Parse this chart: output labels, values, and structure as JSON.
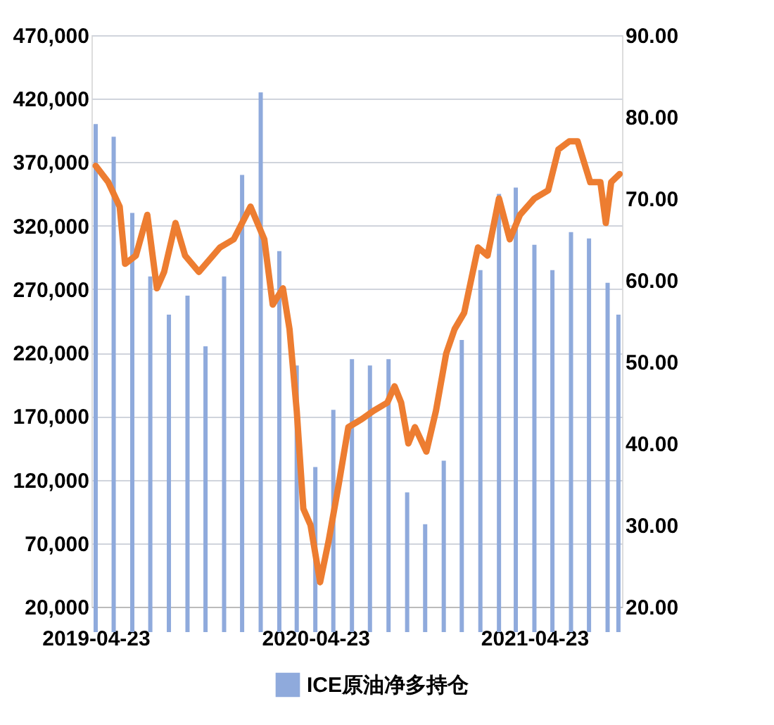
{
  "chart_data": {
    "type": "bar",
    "x": [
      "2019-04-23",
      "2019-05-23",
      "2019-06-23",
      "2019-07-23",
      "2019-08-23",
      "2019-09-23",
      "2019-10-23",
      "2019-11-23",
      "2019-12-23",
      "2020-01-23",
      "2020-02-23",
      "2020-03-23",
      "2020-04-23",
      "2020-05-23",
      "2020-06-23",
      "2020-07-23",
      "2020-08-23",
      "2020-09-23",
      "2020-10-23",
      "2020-11-23",
      "2020-12-23",
      "2021-01-23",
      "2021-02-23",
      "2021-03-23",
      "2021-04-23",
      "2021-05-23",
      "2021-06-23",
      "2021-07-23",
      "2021-08-23",
      "2021-09-10"
    ],
    "series": [
      {
        "name": "ICE原油净多持仓",
        "type": "bar",
        "color": "#8faadc",
        "values": [
          400000,
          390000,
          330000,
          280000,
          250000,
          265000,
          225000,
          280000,
          360000,
          425000,
          300000,
          210000,
          130000,
          175000,
          215000,
          210000,
          215000,
          110000,
          85000,
          135000,
          230000,
          285000,
          345000,
          350000,
          305000,
          285000,
          315000,
          310000,
          275000,
          250000
        ]
      },
      {
        "type": "line",
        "axis": "y2",
        "color": "#ed7d31",
        "x": [
          "2019-04-23",
          "2019-05-14",
          "2019-06-02",
          "2019-06-11",
          "2019-06-29",
          "2019-07-18",
          "2019-08-03",
          "2019-08-15",
          "2019-09-03",
          "2019-09-19",
          "2019-10-12",
          "2019-11-16",
          "2019-12-09",
          "2020-01-06",
          "2020-01-29",
          "2020-02-12",
          "2020-02-29",
          "2020-03-11",
          "2020-03-23",
          "2020-04-03",
          "2020-04-15",
          "2020-05-01",
          "2020-05-15",
          "2020-06-01",
          "2020-06-17",
          "2020-07-10",
          "2020-07-29",
          "2020-08-21",
          "2020-09-02",
          "2020-09-13",
          "2020-09-25",
          "2020-10-06",
          "2020-10-25",
          "2020-11-10",
          "2020-11-27",
          "2020-12-11",
          "2020-12-27",
          "2021-01-19",
          "2021-02-04",
          "2021-02-23",
          "2021-03-13",
          "2021-03-30",
          "2021-04-23",
          "2021-05-16",
          "2021-06-02",
          "2021-06-20",
          "2021-07-04",
          "2021-07-25",
          "2021-08-11",
          "2021-08-20",
          "2021-08-29",
          "2021-09-12"
        ],
        "values": [
          74,
          72,
          69,
          62,
          63,
          68,
          59,
          61,
          67,
          63,
          61,
          64,
          65,
          69,
          65,
          57,
          59,
          54,
          44,
          32,
          30,
          23,
          28,
          35,
          42,
          43,
          44,
          45,
          47,
          45,
          40,
          42,
          39,
          44,
          51,
          54,
          56,
          64,
          63,
          70,
          65,
          68,
          70,
          71,
          76,
          77,
          77,
          72,
          72,
          67,
          72,
          73
        ]
      }
    ],
    "xlim": [
      "2019-04-16",
      "2021-09-16"
    ],
    "xticks": [
      "2019-04-23",
      "2020-04-23",
      "2021-04-23"
    ],
    "ylim": [
      20000,
      470000
    ],
    "yticks": [
      {
        "value": 20000,
        "label": "20,000"
      },
      {
        "value": 70000,
        "label": "70,000"
      },
      {
        "value": 120000,
        "label": "120,000"
      },
      {
        "value": 170000,
        "label": "170,000"
      },
      {
        "value": 220000,
        "label": "220,000"
      },
      {
        "value": 270000,
        "label": "270,000"
      },
      {
        "value": 320000,
        "label": "320,000"
      },
      {
        "value": 370000,
        "label": "370,000"
      },
      {
        "value": 420000,
        "label": "420,000"
      },
      {
        "value": 470000,
        "label": "470,000"
      }
    ],
    "y2lim": [
      20,
      90
    ],
    "y2ticks": [
      {
        "value": 20,
        "label": "20.00"
      },
      {
        "value": 30,
        "label": "30.00"
      },
      {
        "value": 40,
        "label": "40.00"
      },
      {
        "value": 50,
        "label": "50.00"
      },
      {
        "value": 60,
        "label": "60.00"
      },
      {
        "value": 70,
        "label": "70.00"
      },
      {
        "value": 80,
        "label": "80.00"
      },
      {
        "value": 90,
        "label": "90.00"
      }
    ],
    "grid": "y",
    "legend": "bottom",
    "line_style": "solid"
  }
}
